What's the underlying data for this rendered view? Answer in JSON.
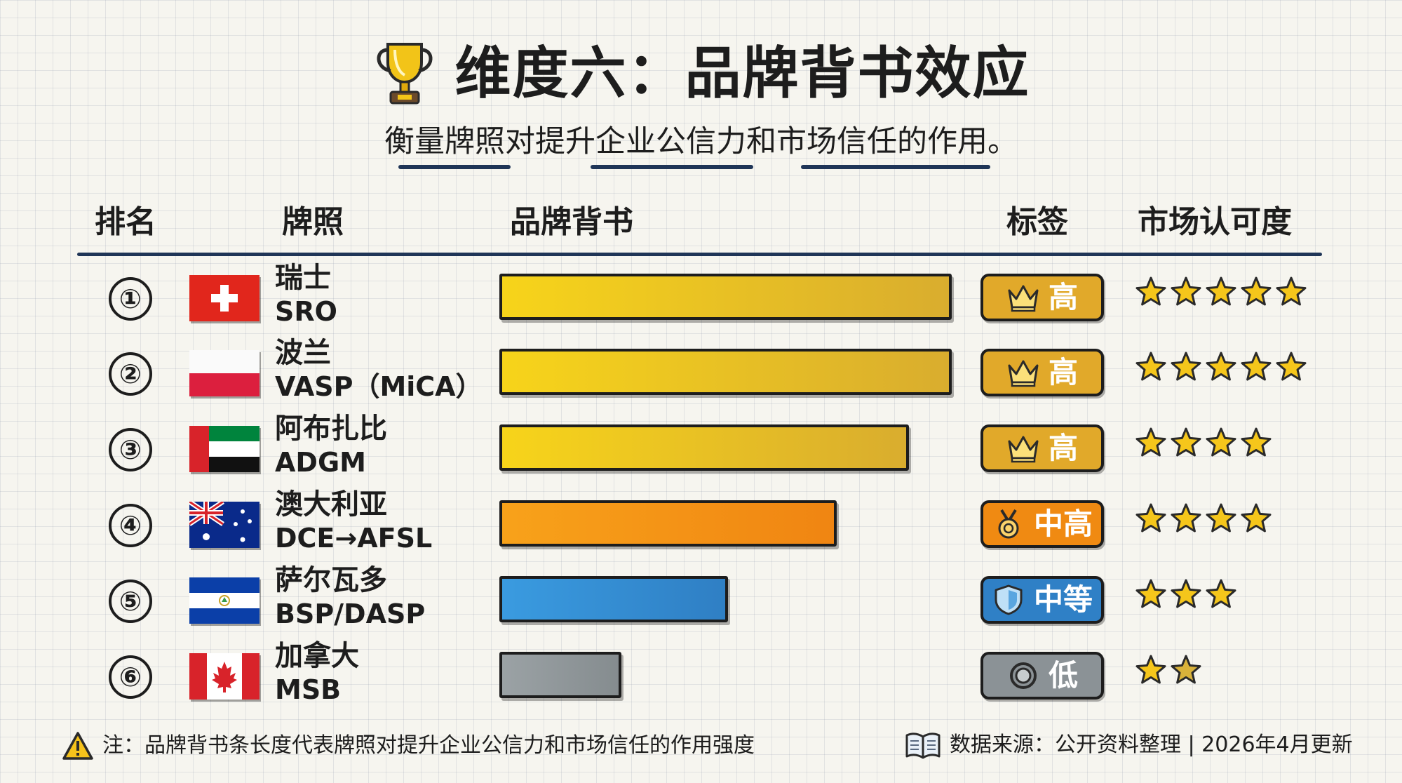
{
  "header": {
    "title": "维度六：品牌背书效应",
    "subtitle": "衡量牌照对提升企业公信力和市场信任的作用。",
    "icon": "trophy-icon"
  },
  "columns": {
    "rank": "排名",
    "license": "牌照",
    "brand": "品牌背书",
    "tag": "标签",
    "recognition": "市场认可度"
  },
  "colors": {
    "gold": "#f2c418",
    "orange": "#f59a17",
    "blue": "#3a93d6",
    "gray": "#8f9699",
    "navy": "#1f3557"
  },
  "chart_data": {
    "type": "bar",
    "orientation": "horizontal",
    "categories": [
      "瑞士 SRO",
      "波兰 VASP（MiCA）",
      "阿布扎比 ADGM",
      "澳大利亚 DCE→AFSL",
      "萨尔瓦多 BSP/DASP",
      "加拿大 MSB"
    ],
    "values": [
      100,
      100,
      90.5,
      74.5,
      50.5,
      27
    ],
    "xlim": [
      0,
      100
    ],
    "title": "品牌背书",
    "xlabel": "",
    "ylabel": "",
    "grid": false
  },
  "rows": [
    {
      "rank": "①",
      "flag": "flag-switzerland-icon",
      "name": "瑞士",
      "code": "SRO",
      "bar_color": "gold",
      "tag": "高",
      "tag_icon": "crown-icon",
      "tag_color": "gold",
      "stars": 5
    },
    {
      "rank": "②",
      "flag": "flag-poland-icon",
      "name": "波兰",
      "code": "VASP（MiCA）",
      "bar_color": "gold",
      "tag": "高",
      "tag_icon": "crown-icon",
      "tag_color": "gold",
      "stars": 5
    },
    {
      "rank": "③",
      "flag": "flag-uae-icon",
      "name": "阿布扎比",
      "code": "ADGM",
      "bar_color": "gold",
      "tag": "高",
      "tag_icon": "crown-icon",
      "tag_color": "gold",
      "stars": 4
    },
    {
      "rank": "④",
      "flag": "flag-australia-icon",
      "name": "澳大利亚",
      "code": "DCE→AFSL",
      "bar_color": "orange",
      "tag": "中高",
      "tag_icon": "medal-icon",
      "tag_color": "orange",
      "stars": 4
    },
    {
      "rank": "⑤",
      "flag": "flag-el-salvador-icon",
      "name": "萨尔瓦多",
      "code": "BSP/DASP",
      "bar_color": "blue",
      "tag": "中等",
      "tag_icon": "shield-icon",
      "tag_color": "blue",
      "stars": 3
    },
    {
      "rank": "⑥",
      "flag": "flag-canada-icon",
      "name": "加拿大",
      "code": "MSB",
      "bar_color": "gray",
      "tag": "低",
      "tag_icon": "ring-icon",
      "tag_color": "gray",
      "stars": 2
    }
  ],
  "footer": {
    "note": "注：品牌背书条长度代表牌照对提升企业公信力和市场信任的作用强度",
    "note_icon": "warning-icon",
    "source": "数据来源：公开资料整理 | 2026年4月更新",
    "source_icon": "book-icon"
  }
}
